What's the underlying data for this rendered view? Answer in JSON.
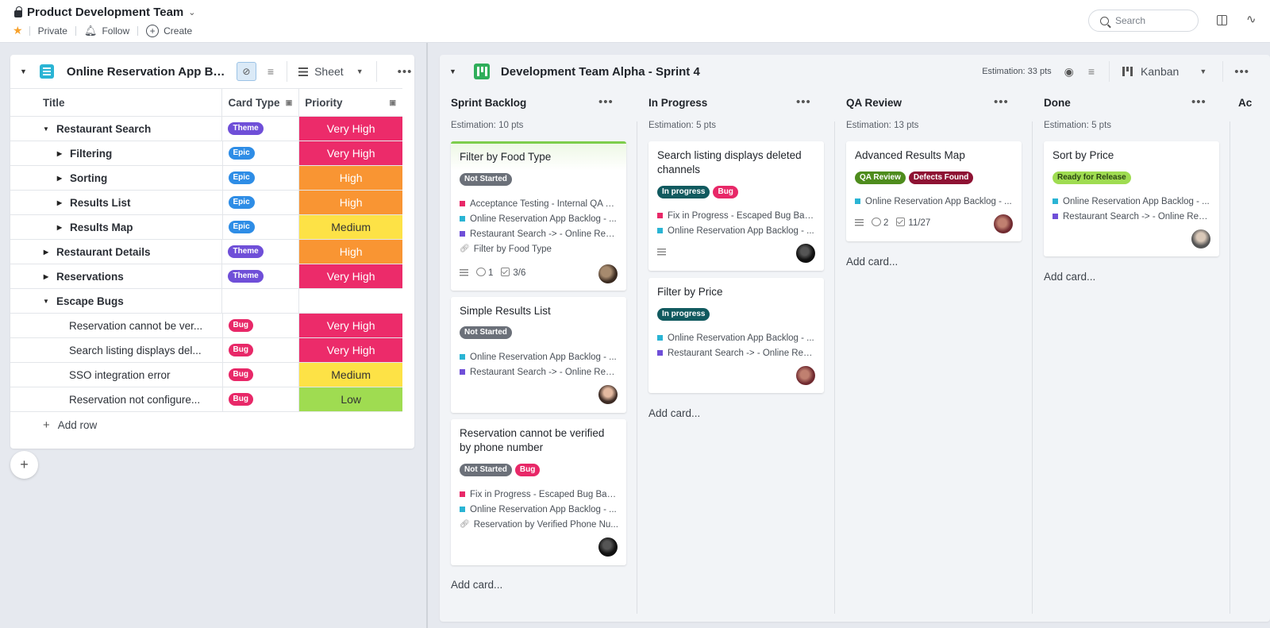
{
  "header": {
    "title": "Product Development Team",
    "private_label": "Private",
    "follow_label": "Follow",
    "create_label": "Create",
    "search_placeholder": "Search"
  },
  "sheet": {
    "title": "Online Reservation App Ba...",
    "view_label": "Sheet",
    "columns": {
      "title": "Title",
      "card_type": "Card Type",
      "priority": "Priority"
    },
    "rows": [
      {
        "title": "Restaurant Search",
        "type": "Theme",
        "priority": "Very High"
      },
      {
        "title": "Filtering",
        "type": "Epic",
        "priority": "Very High"
      },
      {
        "title": "Sorting",
        "type": "Epic",
        "priority": "High"
      },
      {
        "title": "Results List",
        "type": "Epic",
        "priority": "High"
      },
      {
        "title": "Results Map",
        "type": "Epic",
        "priority": "Medium"
      },
      {
        "title": "Restaurant Details",
        "type": "Theme",
        "priority": "High"
      },
      {
        "title": "Reservations",
        "type": "Theme",
        "priority": "Very High"
      },
      {
        "title": "Escape Bugs",
        "type": "",
        "priority": ""
      },
      {
        "title": "Reservation cannot be ver...",
        "type": "Bug",
        "priority": "Very High"
      },
      {
        "title": "Search listing displays del...",
        "type": "Bug",
        "priority": "Very High"
      },
      {
        "title": "SSO integration error",
        "type": "Bug",
        "priority": "Medium"
      },
      {
        "title": "Reservation not configure...",
        "type": "Bug",
        "priority": "Low"
      }
    ],
    "add_row_label": "Add row"
  },
  "kanban": {
    "title": "Development Team Alpha - Sprint 4",
    "estimation": "Estimation: 33 pts",
    "view_label": "Kanban",
    "next_column_partial": "Ac",
    "add_card_label": "Add card...",
    "columns": [
      {
        "name": "Sprint Backlog",
        "estimation": "Estimation: 10 pts",
        "cards": [
          {
            "title": "Filter by Food Type",
            "tags": [
              "Not Started"
            ],
            "links": [
              "Acceptance Testing - Internal QA B...",
              "Online Reservation App Backlog - ...",
              "Restaurant Search -> - Online Rese...",
              "Filter by Food Type"
            ],
            "comments": "1",
            "checklist": "3/6"
          },
          {
            "title": "Simple Results List",
            "tags": [
              "Not Started"
            ],
            "links": [
              "Online Reservation App Backlog - ...",
              "Restaurant Search -> - Online Rese..."
            ]
          },
          {
            "title": "Reservation cannot be verified by phone number",
            "tags": [
              "Not Started",
              "Bug"
            ],
            "links": [
              "Fix in Progress - Escaped Bug Back...",
              "Online Reservation App Backlog - ...",
              "Reservation by Verified Phone Nu..."
            ]
          }
        ]
      },
      {
        "name": "In Progress",
        "estimation": "Estimation: 5 pts",
        "cards": [
          {
            "title": "Search listing displays deleted channels",
            "tags": [
              "In progress",
              "Bug"
            ],
            "links": [
              "Fix in Progress - Escaped Bug Back...",
              "Online Reservation App Backlog - ..."
            ]
          },
          {
            "title": "Filter by Price",
            "tags": [
              "In progress"
            ],
            "links": [
              "Online Reservation App Backlog - ...",
              "Restaurant Search -> - Online Rese..."
            ]
          }
        ]
      },
      {
        "name": "QA Review",
        "estimation": "Estimation: 13 pts",
        "cards": [
          {
            "title": "Advanced Results Map",
            "tags": [
              "QA Review",
              "Defects Found"
            ],
            "links": [
              "Online Reservation App Backlog - ..."
            ],
            "comments": "2",
            "checklist": "11/27"
          }
        ]
      },
      {
        "name": "Done",
        "estimation": "Estimation: 5 pts",
        "cards": [
          {
            "title": "Sort by Price",
            "tags": [
              "Ready for Release"
            ],
            "links": [
              "Online Reservation App Backlog - ...",
              "Restaurant Search -> - Online Rese..."
            ]
          }
        ]
      }
    ]
  }
}
